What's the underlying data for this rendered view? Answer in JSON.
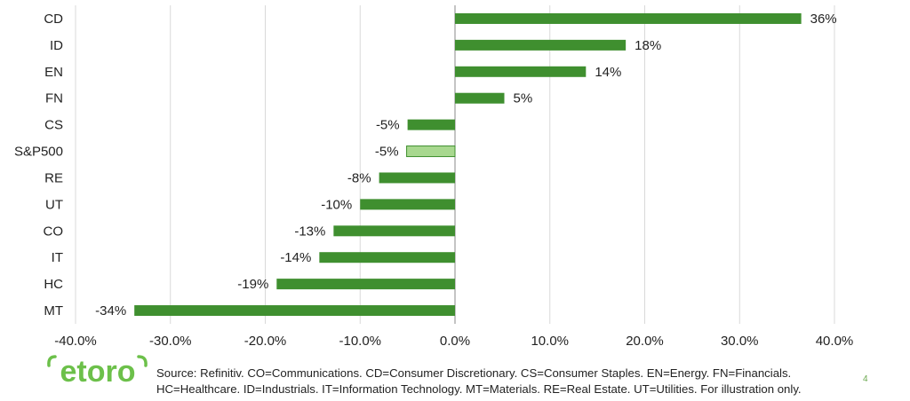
{
  "chart_data": {
    "type": "bar",
    "orientation": "horizontal",
    "categories": [
      "CD",
      "ID",
      "EN",
      "FN",
      "CS",
      "S&P500",
      "RE",
      "UT",
      "CO",
      "IT",
      "HC",
      "MT"
    ],
    "values": [
      36.5,
      18,
      13.8,
      5.2,
      -5,
      -5.1,
      -8,
      -10,
      -12.8,
      -14.3,
      -18.8,
      -33.8
    ],
    "data_labels": [
      "36%",
      "18%",
      "14%",
      "5%",
      "-5%",
      "-5%",
      "-8%",
      "-10%",
      "-13%",
      "-14%",
      "-19%",
      "-34%"
    ],
    "highlight_category": "S&P500",
    "xlim": [
      -40,
      40
    ],
    "xticks": [
      -40,
      -30,
      -20,
      -10,
      0,
      10,
      20,
      30,
      40
    ],
    "xtick_labels": [
      "-40.0%",
      "-30.0%",
      "-20.0%",
      "-10.0%",
      "0.0%",
      "10.0%",
      "20.0%",
      "30.0%",
      "40.0%"
    ],
    "grid": "vertical",
    "colors": {
      "bar": "#3f8f2f",
      "highlight": "#a8d88f",
      "highlight_border": "#3f8f2f",
      "grid": "#d9d9d9",
      "axis": "#888888"
    },
    "title": "",
    "xlabel": "",
    "ylabel": ""
  },
  "logo": {
    "text": "etoro",
    "color": "#6cc04a"
  },
  "footer": {
    "line1": "Source: Refinitiv. CO=Communications. CD=Consumer Discretionary. CS=Consumer Staples.  EN=Energy. FN=Financials.",
    "line2": "HC=Healthcare. ID=Industrials. IT=Information Technology. MT=Materials. RE=Real Estate. UT=Utilities. For illustration only."
  },
  "page_number": "4"
}
